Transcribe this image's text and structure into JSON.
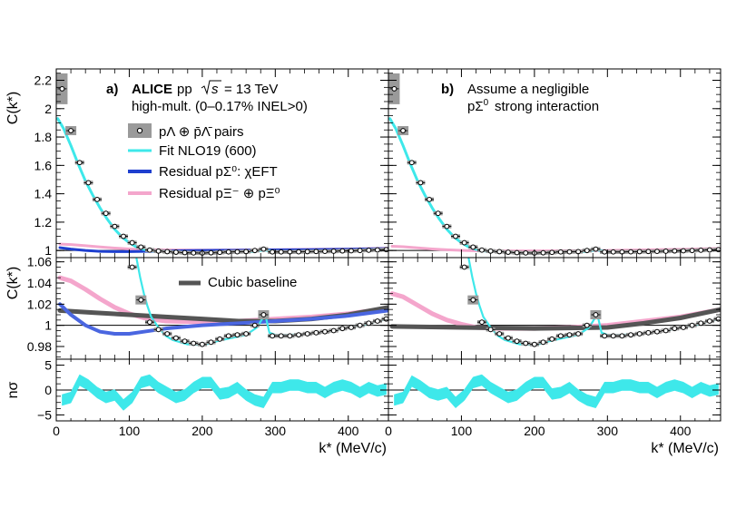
{
  "chart_data": {
    "type": "line",
    "title": "ALICE pp √s = 13 TeV, high-mult. (0–0.17% INEL>0)",
    "xlabel": "k* (MeV/c)",
    "xlim": [
      0,
      455
    ],
    "x_ticks": [
      0,
      100,
      200,
      300,
      400
    ],
    "colors": {
      "fit": "#3ee8ea",
      "sigma_resid": "#1e3fcf",
      "xi_resid": "#f4a6cc",
      "baseline": "#555555",
      "data_box": "#9a9a9a"
    },
    "panels": [
      {
        "name": "a",
        "label_letter": "a)",
        "experiment": "ALICE",
        "system": "pp",
        "energy_label": "= 13 TeV",
        "multiplicity": "high-mult. (0–0.17% INEL>0)"
      },
      {
        "name": "b",
        "label_letter": "b)",
        "text_line1": "Assume a negligible",
        "text_line2": "strong interaction"
      }
    ],
    "legend": {
      "data": "pΛ ⊕ p̄Λ̄ pairs",
      "fit": "Fit NLO19 (600)",
      "sigma": "Residual pΣ⁰: χEFT",
      "xi": "Residual pΞ⁻ ⊕ pΞ⁰",
      "baseline": "Cubic baseline"
    },
    "top_axis": {
      "ylabel": "C(k*)",
      "ylim": [
        0.95,
        2.28
      ],
      "ticks": [
        1,
        1.2,
        1.4,
        1.6,
        1.8,
        2,
        2.2
      ],
      "tick_labels": [
        "1",
        "1.2",
        "1.4",
        "1.6",
        "1.8",
        "2",
        "2.2"
      ]
    },
    "mid_axis": {
      "ylabel": "C(k*)",
      "ylim": [
        0.968,
        1.064
      ],
      "ticks": [
        0.98,
        1,
        1.02,
        1.04,
        1.06
      ],
      "tick_labels": [
        "0.98",
        "1",
        "1.02",
        "1.04",
        "1.06"
      ]
    },
    "bot_axis": {
      "ylabel": "nσ",
      "ylim": [
        -6.2,
        6.2
      ],
      "ticks": [
        -5,
        0,
        5
      ],
      "tick_labels": [
        "−5",
        "0",
        "5"
      ]
    },
    "data_points": {
      "k": [
        8,
        20,
        32,
        44,
        56,
        68,
        80,
        92,
        104,
        116,
        128,
        140,
        152,
        164,
        176,
        188,
        200,
        212,
        224,
        236,
        248,
        260,
        272,
        284,
        296,
        308,
        320,
        332,
        344,
        356,
        368,
        380,
        392,
        404,
        416,
        428,
        440,
        452
      ],
      "C": [
        2.14,
        1.845,
        1.62,
        1.478,
        1.36,
        1.262,
        1.17,
        1.1,
        1.055,
        1.024,
        1.003,
        0.996,
        0.992,
        0.988,
        0.985,
        0.983,
        0.982,
        0.984,
        0.987,
        0.99,
        0.991,
        0.992,
        1.0,
        1.01,
        0.99,
        0.99,
        0.99,
        0.991,
        0.992,
        0.993,
        0.994,
        0.995,
        0.997,
        0.998,
        1.0,
        1.002,
        1.004,
        1.006
      ]
    },
    "fit_top": {
      "k": [
        2,
        10,
        20,
        30,
        40,
        50,
        60,
        70,
        80,
        90,
        100,
        110,
        120,
        130,
        140,
        160,
        200,
        240,
        270,
        285,
        300,
        350,
        400,
        455
      ],
      "C": [
        1.93,
        1.86,
        1.74,
        1.61,
        1.49,
        1.39,
        1.3,
        1.22,
        1.15,
        1.095,
        1.055,
        1.025,
        1.008,
        0.998,
        0.993,
        0.988,
        0.983,
        0.988,
        0.993,
        1.005,
        0.99,
        0.993,
        0.998,
        1.008
      ]
    },
    "fit_mid": {
      "k": [
        110,
        115,
        120,
        125,
        130,
        140,
        150,
        160,
        170,
        180,
        190,
        200,
        210,
        220,
        240,
        260,
        275,
        282,
        287,
        292,
        300,
        320,
        340,
        360,
        380,
        400,
        420,
        440,
        455
      ],
      "C": [
        1.063,
        1.045,
        1.03,
        1.018,
        1.008,
        0.998,
        0.99,
        0.986,
        0.984,
        0.982,
        0.982,
        0.981,
        0.983,
        0.985,
        0.988,
        0.991,
        0.998,
        1.006,
        1.008,
        0.993,
        0.991,
        0.991,
        0.992,
        0.993,
        0.995,
        0.998,
        1.0,
        1.004,
        1.006
      ]
    },
    "sigma_a": {
      "k": [
        5,
        20,
        40,
        60,
        80,
        100,
        120,
        150,
        200,
        250,
        300,
        350,
        400,
        455
      ],
      "C": [
        1.02,
        1.01,
        1.0,
        0.994,
        0.992,
        0.992,
        0.994,
        0.997,
        1.0,
        1.002,
        1.004,
        1.006,
        1.009,
        1.014
      ]
    },
    "xi_a": {
      "k": [
        5,
        20,
        40,
        60,
        80,
        100,
        120,
        150,
        200,
        250,
        300,
        350,
        400,
        455
      ],
      "C": [
        1.045,
        1.042,
        1.034,
        1.025,
        1.017,
        1.011,
        1.007,
        1.004,
        1.003,
        1.004,
        1.006,
        1.008,
        1.011,
        1.016
      ]
    },
    "base_a": {
      "k": [
        5,
        50,
        100,
        150,
        200,
        250,
        300,
        350,
        400,
        455
      ],
      "C": [
        1.014,
        1.012,
        1.01,
        1.008,
        1.006,
        1.004,
        1.004,
        1.006,
        1.01,
        1.017
      ]
    },
    "xi_b": {
      "k": [
        5,
        20,
        40,
        60,
        80,
        100,
        120,
        150,
        200,
        250,
        300,
        350,
        400,
        455
      ],
      "C": [
        1.03,
        1.027,
        1.019,
        1.011,
        1.005,
        1.001,
        0.998,
        0.997,
        0.997,
        0.998,
        1.0,
        1.004,
        1.008,
        1.015
      ]
    },
    "base_b": {
      "k": [
        5,
        100,
        200,
        300,
        350,
        400,
        455
      ],
      "C": [
        0.999,
        0.998,
        0.997,
        0.998,
        1.002,
        1.007,
        1.015
      ]
    },
    "nsigma": {
      "k": [
        8,
        20,
        32,
        44,
        56,
        68,
        80,
        92,
        104,
        116,
        128,
        140,
        152,
        164,
        176,
        188,
        200,
        212,
        224,
        236,
        248,
        260,
        272,
        284,
        296,
        308,
        320,
        332,
        344,
        356,
        368,
        380,
        392,
        404,
        416,
        428,
        440,
        452
      ],
      "a": [
        -2,
        -1.5,
        2.0,
        1.0,
        -0.5,
        -1.5,
        -1.0,
        -3.0,
        -1.5,
        1.5,
        2.0,
        0.5,
        -0.5,
        -1.5,
        -1.0,
        0.5,
        1.5,
        1.5,
        -0.8,
        -0.5,
        0.5,
        -1.0,
        -2.0,
        -2.5,
        0.5,
        0.5,
        1.0,
        1.0,
        0.5,
        0.5,
        -0.5,
        0.5,
        1.0,
        0.5,
        -0.5,
        0.5,
        -0.2,
        0.2
      ],
      "b": [
        -2,
        -1.5,
        1.8,
        0.8,
        -0.5,
        -1.0,
        -0.5,
        -2.5,
        -1.0,
        1.5,
        2.0,
        0.5,
        -0.5,
        -1.5,
        -1.0,
        0.5,
        1.5,
        1.5,
        -0.8,
        -0.5,
        0.5,
        -1.0,
        -2.0,
        -2.5,
        0.5,
        0.5,
        1.0,
        1.0,
        0.5,
        0.5,
        -0.5,
        0.5,
        1.0,
        0.5,
        -0.5,
        0.5,
        -0.2,
        0.2
      ],
      "band_halfwidth": 1.1
    }
  }
}
